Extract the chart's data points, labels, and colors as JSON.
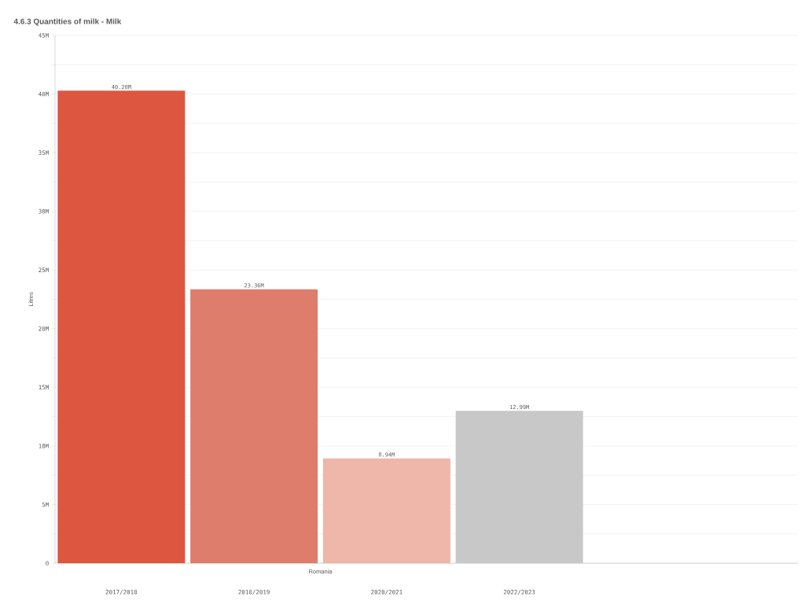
{
  "chart_data": {
    "type": "bar",
    "title": "4.6.3 Quantities of milk - Milk",
    "xlabel": "Romania",
    "ylabel": "Litres",
    "categories": [
      "2017/2018",
      "2018/2019",
      "2020/2021",
      "2022/2023"
    ],
    "values": [
      40.28,
      23.36,
      8.94,
      12.99
    ],
    "colors": [
      "#dc5640",
      "#de7d6b",
      "#efb6aa",
      "#c8c8c8"
    ],
    "value_labels": [
      "40.28M",
      "23.36M",
      "8.94M",
      "12.99M"
    ],
    "ylim": [
      0,
      45
    ],
    "yticks": [
      0,
      {
        "value": 2.5,
        "label": null
      },
      {
        "value": 5,
        "label": "5M"
      },
      {
        "value": 7.5,
        "label": null
      },
      {
        "value": 10,
        "label": "10M"
      },
      {
        "value": 12.5,
        "label": null
      },
      {
        "value": 15,
        "label": "15M"
      },
      {
        "value": 17.5,
        "label": null
      },
      {
        "value": 20,
        "label": "20M"
      },
      {
        "value": 22.5,
        "label": null
      },
      {
        "value": 25,
        "label": "25M"
      },
      {
        "value": 27.5,
        "label": null
      },
      {
        "value": 30,
        "label": "30M"
      },
      {
        "value": 32.5,
        "label": null
      },
      {
        "value": 35,
        "label": "35M"
      },
      {
        "value": 37.5,
        "label": null
      },
      {
        "value": 40,
        "label": "40M"
      },
      {
        "value": 42.5,
        "label": null
      },
      {
        "value": 45,
        "label": "45M"
      }
    ],
    "grid": "y"
  }
}
